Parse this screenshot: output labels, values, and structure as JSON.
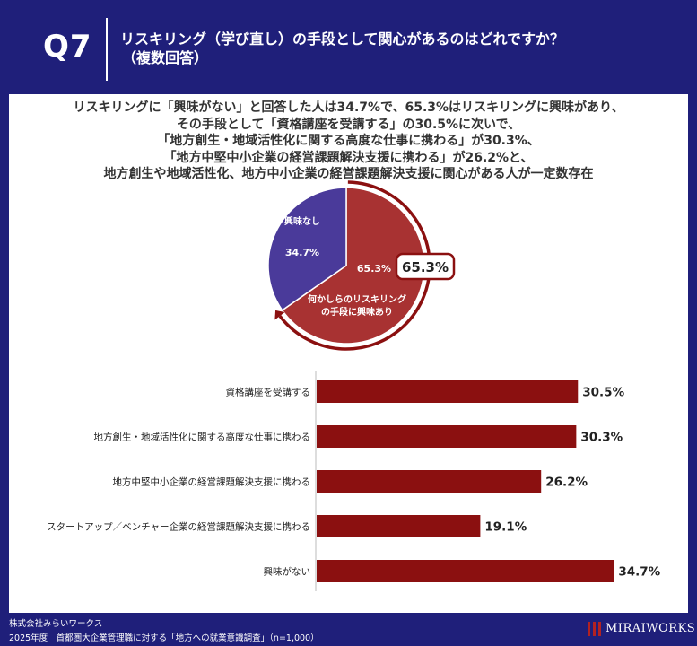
{
  "header": {
    "question_number": "Q7",
    "title_line1": "リスキリング（学び直し）の手段として関心があるのはどれですか？",
    "title_line2": "（複数回答）"
  },
  "summary": [
    "リスキリングに「興味がない」と回答した人は34.7%で、65.3%はリスキリングに興味があり、",
    "その手段として「資格講座を受講する」の30.5%に次いで、",
    "「地方創生・地域活性化に関する高度な仕事に携わる」が30.3%、",
    "「地方中堅中小企業の経営課題解決支援に携わる」が26.2%と、",
    "地方創生や地域活性化、地方中小企業の経営課題解決支援に関心がある人が一定数存在"
  ],
  "colors": {
    "navy": "#1f1f7a",
    "accent": "#8b1010",
    "pie_red": "#a83232",
    "pie_purple": "#4a3a9a"
  },
  "chart_data": [
    {
      "type": "pie",
      "slices": [
        {
          "label": "何かしらのリスキリングの手段に興味あり",
          "label_lines": [
            "何かしらのリスキリング",
            "の手段に興味あり"
          ],
          "value": 65.3,
          "value_label": "65.3%"
        },
        {
          "label": "興味なし",
          "label_lines": [
            "興味なし"
          ],
          "value": 34.7,
          "value_label": "34.7%"
        }
      ],
      "callout": "65.3%"
    },
    {
      "type": "bar",
      "orientation": "horizontal",
      "categories": [
        "資格講座を受講する",
        "地方創生・地域活性化に関する高度な仕事に携わる",
        "地方中堅中小企業の経営課題解決支援に携わる",
        "スタートアップ／ベンチャー企業の経営課題解決支援に携わる",
        "興味がない"
      ],
      "values": [
        30.5,
        30.3,
        26.2,
        19.1,
        34.7
      ],
      "value_labels": [
        "30.5%",
        "30.3%",
        "26.2%",
        "19.1%",
        "34.7%"
      ]
    }
  ],
  "footer": {
    "company": "株式会社みらいワークス",
    "source": "2025年度　首都圏大企業管理職に対する「地方への就業意識調査」（n=1,000）",
    "logo_text": "MIRAIWORKS"
  }
}
